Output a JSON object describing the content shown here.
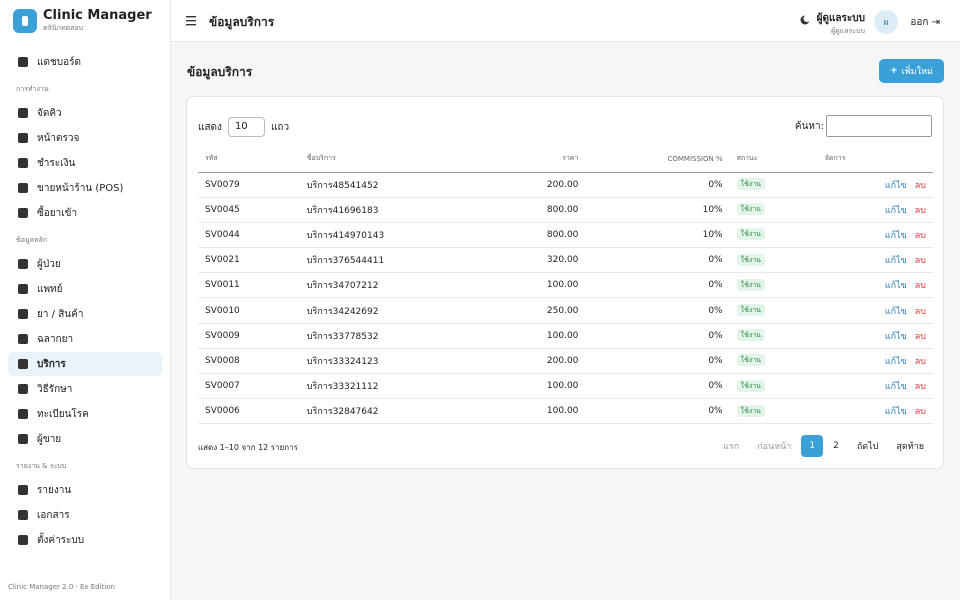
{
  "sidebar": {
    "brand": {
      "title": "Clinic Manager",
      "subtitle": "คลินิกทดสอบ"
    },
    "menu": [
      {
        "items": [
          {
            "label": "แดชบอร์ด"
          }
        ]
      },
      {
        "section": "การทำงาน",
        "items": [
          {
            "label": "จัดคิว"
          },
          {
            "label": "หน้าตรวจ"
          },
          {
            "label": "ชำระเงิน"
          },
          {
            "label": "ขายหน้าร้าน (POS)"
          },
          {
            "label": "ซื้อยาเข้า"
          }
        ]
      },
      {
        "section": "ข้อมูลหลัก",
        "items": [
          {
            "label": "ผู้ป่วย"
          },
          {
            "label": "แพทย์"
          },
          {
            "label": "ยา / สินค้า"
          },
          {
            "label": "ฉลากยา"
          },
          {
            "label": "บริการ",
            "active": true
          },
          {
            "label": "วิธีรักษา"
          },
          {
            "label": "ทะเบียนโรค"
          },
          {
            "label": "ผู้ขาย"
          }
        ]
      },
      {
        "section": "รายงาน & ระบบ",
        "items": [
          {
            "label": "รายงาน"
          },
          {
            "label": "เอกสาร"
          },
          {
            "label": "ตั้งค่าระบบ"
          }
        ]
      }
    ],
    "footer": "Clinic Manager 2.0 · Ex Edition"
  },
  "topbar": {
    "title": "ข้อมูลบริการ",
    "user": {
      "name": "ผู้ดูแลระบบ",
      "role": "ผู้ดูแลระบบ",
      "avatar": "ผ"
    },
    "logout": "ออก"
  },
  "content": {
    "heading": "ข้อมูลบริการ",
    "add_button": "เพิ่มใหม่",
    "controls": {
      "show": "แสดง",
      "page_size": "10",
      "rows_word": "แถว",
      "search": "ค้นหา:"
    },
    "table": {
      "columns": [
        "รหัส",
        "ชื่อบริการ",
        "ราคา",
        "COMMISSION %",
        "สถานะ",
        "จัดการ"
      ],
      "rows": [
        [
          "SV0079",
          "บริการ48541452",
          "200.00",
          "0%",
          "ใช้งาน",
          "แก้ไข",
          "ลบ"
        ],
        [
          "SV0045",
          "บริการ41696183",
          "800.00",
          "10%",
          "ใช้งาน",
          "แก้ไข",
          "ลบ"
        ],
        [
          "SV0044",
          "บริการ414970143",
          "800.00",
          "10%",
          "ใช้งาน",
          "แก้ไข",
          "ลบ"
        ],
        [
          "SV0021",
          "บริการ376544411",
          "320.00",
          "0%",
          "ใช้งาน",
          "แก้ไข",
          "ลบ"
        ],
        [
          "SV0011",
          "บริการ34707212",
          "100.00",
          "0%",
          "ใช้งาน",
          "แก้ไข",
          "ลบ"
        ],
        [
          "SV0010",
          "บริการ34242692",
          "250.00",
          "0%",
          "ใช้งาน",
          "แก้ไข",
          "ลบ"
        ],
        [
          "SV0009",
          "บริการ33778532",
          "100.00",
          "0%",
          "ใช้งาน",
          "แก้ไข",
          "ลบ"
        ],
        [
          "SV0008",
          "บริการ33324123",
          "200.00",
          "0%",
          "ใช้งาน",
          "แก้ไข",
          "ลบ"
        ],
        [
          "SV0007",
          "บริการ33321112",
          "100.00",
          "0%",
          "ใช้งาน",
          "แก้ไข",
          "ลบ"
        ],
        [
          "SV0006",
          "บริการ32847642",
          "100.00",
          "0%",
          "ใช้งาน",
          "แก้ไข",
          "ลบ"
        ]
      ]
    },
    "info": "แสดง 1–10 จาก 12 รายการ",
    "pagination": [
      {
        "label": "แรก"
      },
      {
        "label": "ก่อนหน้า"
      },
      {
        "label": "1",
        "active": true
      },
      {
        "label": "2"
      },
      {
        "label": "ถัดไป"
      },
      {
        "label": "สุดท้าย"
      }
    ]
  }
}
